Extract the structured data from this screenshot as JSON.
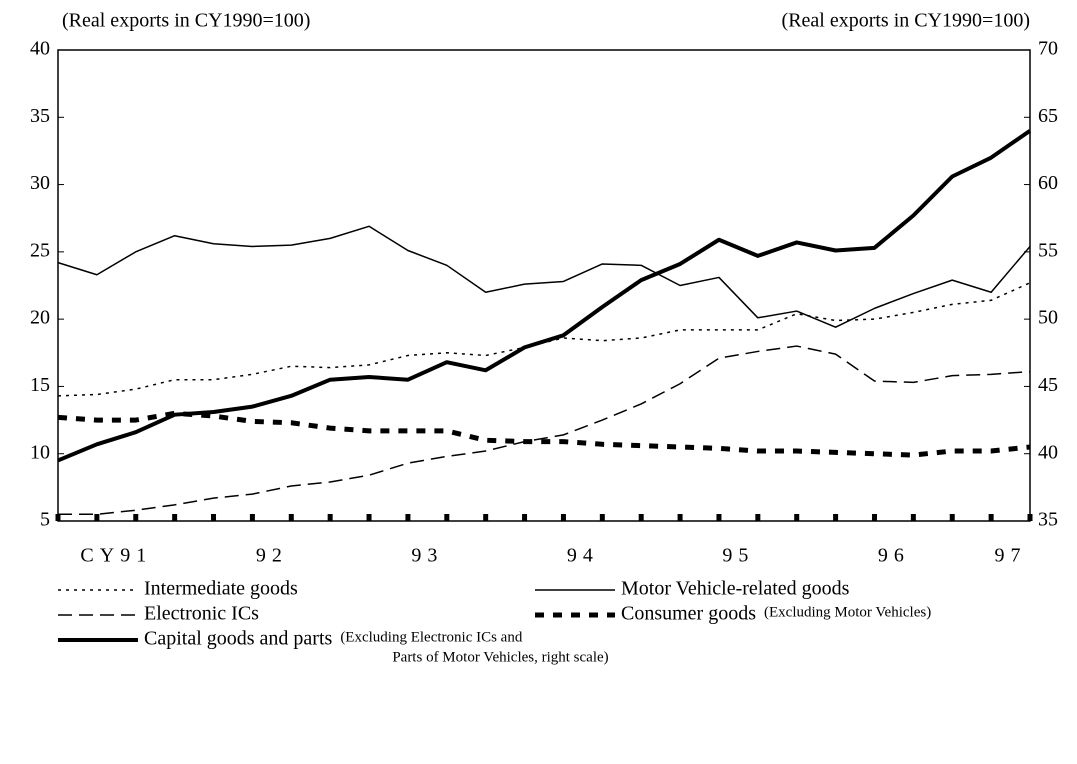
{
  "chart_data": {
    "type": "line",
    "y_label": "(Real exports in CY1990=100)",
    "y2_label": "(Real exports in CY1990=100)",
    "ylim": [
      5,
      40
    ],
    "yticks": [
      5,
      10,
      15,
      20,
      25,
      30,
      35,
      40
    ],
    "y2lim": [
      35,
      70
    ],
    "y2ticks": [
      35,
      40,
      45,
      50,
      55,
      60,
      65,
      70
    ],
    "quarters": 26,
    "year_labels": [
      "CY91",
      "92",
      "93",
      "94",
      "95",
      "96",
      "97"
    ],
    "series": [
      {
        "name": "Intermediate goods",
        "color": "#000",
        "style": "dotted",
        "values": [
          14.3,
          14.4,
          14.8,
          15.5,
          15.5,
          15.9,
          16.5,
          16.4,
          16.6,
          17.3,
          17.5,
          17.3,
          17.9,
          18.6,
          18.4,
          18.6,
          19.2,
          19.2,
          19.2,
          20.4,
          19.9,
          20.0,
          20.5,
          21.1,
          21.4,
          22.7
        ]
      },
      {
        "name": "Motor Vehicle-related goods",
        "color": "#000",
        "style": "solid",
        "values": [
          24.2,
          23.3,
          25.0,
          26.2,
          25.6,
          25.4,
          25.5,
          26.0,
          26.9,
          25.1,
          24.0,
          22.0,
          22.6,
          22.8,
          24.1,
          24.0,
          22.5,
          23.1,
          20.1,
          20.6,
          19.4,
          20.8,
          21.9,
          22.9,
          22.0,
          25.4
        ]
      },
      {
        "name": "Electronic ICs",
        "color": "#000",
        "style": "dashed",
        "values": [
          5.5,
          5.5,
          5.8,
          6.2,
          6.7,
          7.0,
          7.6,
          7.9,
          8.4,
          9.3,
          9.8,
          10.2,
          10.9,
          11.4,
          12.5,
          13.7,
          15.2,
          17.1,
          17.6,
          18.0,
          17.4,
          15.4,
          15.3,
          15.8,
          15.9,
          16.1
        ]
      },
      {
        "name": "Consumer goods",
        "note": [
          "(Excluding Motor Vehicles)"
        ],
        "color": "#000",
        "style": "heavy-dashed",
        "values": [
          12.7,
          12.5,
          12.5,
          13.0,
          12.8,
          12.4,
          12.3,
          11.9,
          11.7,
          11.7,
          11.7,
          11.0,
          10.9,
          10.9,
          10.7,
          10.6,
          10.5,
          10.4,
          10.2,
          10.2,
          10.1,
          10.0,
          9.9,
          10.2,
          10.2,
          10.5
        ]
      },
      {
        "name": "Capital goods and parts",
        "note": [
          "(Excluding Electronic ICs and",
          "Parts of Motor Vehicles, right scale)"
        ],
        "color": "#000",
        "style": "thick",
        "axis": "y2",
        "values": [
          39.5,
          40.7,
          41.6,
          42.9,
          43.1,
          43.5,
          44.3,
          45.5,
          45.7,
          45.5,
          46.8,
          46.2,
          47.9,
          48.8,
          50.9,
          52.9,
          54.1,
          55.9,
          54.7,
          55.7,
          55.1,
          55.3,
          57.7,
          60.6,
          62.0,
          64.0
        ]
      }
    ]
  }
}
